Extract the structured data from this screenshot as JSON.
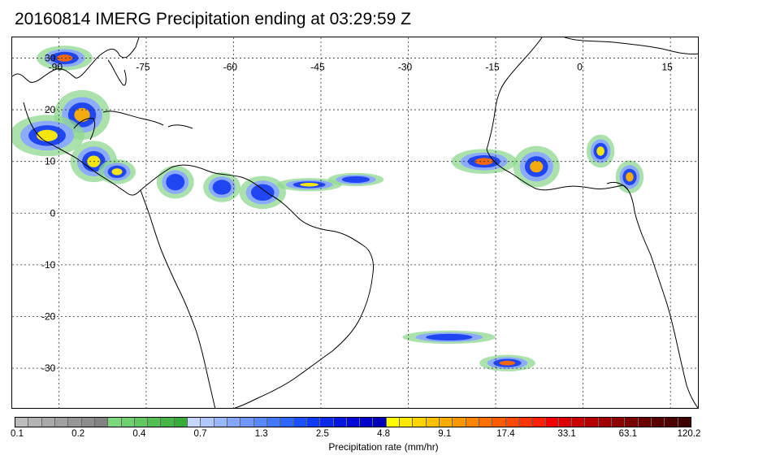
{
  "title": "20160814 IMERG Precipitation ending at 03:29:59 Z",
  "map": {
    "lon_range": [
      -98,
      20
    ],
    "lat_range": [
      -38,
      34
    ],
    "lon_ticks": [
      {
        "value": -90,
        "label": "-90"
      },
      {
        "value": -75,
        "label": "-75"
      },
      {
        "value": -60,
        "label": "-60"
      },
      {
        "value": -45,
        "label": "-45"
      },
      {
        "value": -30,
        "label": "-30"
      },
      {
        "value": -15,
        "label": "-15"
      },
      {
        "value": 0,
        "label": "0"
      },
      {
        "value": 15,
        "label": "15"
      }
    ],
    "lat_ticks": [
      {
        "value": 30,
        "label": "30"
      },
      {
        "value": 20,
        "label": "20"
      },
      {
        "value": 10,
        "label": "10"
      },
      {
        "value": 0,
        "label": "0"
      },
      {
        "value": -10,
        "label": "-10"
      },
      {
        "value": -20,
        "label": "-20"
      },
      {
        "value": -30,
        "label": "-30"
      }
    ],
    "gridlines": true,
    "precip_clusters": [
      {
        "lon": -89,
        "lat": 30,
        "rate": 30,
        "rx": 3.0,
        "ry": 1.5
      },
      {
        "lon": -86,
        "lat": 19,
        "rate": 10,
        "rx": 3.0,
        "ry": 3.0
      },
      {
        "lon": -92,
        "lat": 15,
        "rate": 6,
        "rx": 4.0,
        "ry": 2.5
      },
      {
        "lon": -84,
        "lat": 10,
        "rate": 8,
        "rx": 2.5,
        "ry": 2.5
      },
      {
        "lon": -80,
        "lat": 8,
        "rate": 5,
        "rx": 2.0,
        "ry": 1.5
      },
      {
        "lon": -70,
        "lat": 6,
        "rate": 3,
        "rx": 2.0,
        "ry": 2.0
      },
      {
        "lon": -62,
        "lat": 5,
        "rate": 4,
        "rx": 2.0,
        "ry": 1.8
      },
      {
        "lon": -55,
        "lat": 4,
        "rate": 3,
        "rx": 2.5,
        "ry": 2.0
      },
      {
        "lon": -47,
        "lat": 5.5,
        "rate": 6,
        "rx": 3.5,
        "ry": 0.8
      },
      {
        "lon": -39,
        "lat": 6.5,
        "rate": 4,
        "rx": 3.0,
        "ry": 0.8
      },
      {
        "lon": -17,
        "lat": 10,
        "rate": 25,
        "rx": 3.5,
        "ry": 1.5
      },
      {
        "lon": -8,
        "lat": 9,
        "rate": 10,
        "rx": 2.5,
        "ry": 2.5
      },
      {
        "lon": 3,
        "lat": 12,
        "rate": 8,
        "rx": 1.5,
        "ry": 2.0
      },
      {
        "lon": 8,
        "lat": 7,
        "rate": 12,
        "rx": 1.5,
        "ry": 2.0
      },
      {
        "lon": -13,
        "lat": -29,
        "rate": 20,
        "rx": 3.0,
        "ry": 1.0
      },
      {
        "lon": -23,
        "lat": -24,
        "rate": 3,
        "rx": 5.0,
        "ry": 0.8
      }
    ]
  },
  "colorbar": {
    "colors": [
      "#bdbdbd",
      "#b3b3b3",
      "#a9a9a9",
      "#a0a0a0",
      "#969696",
      "#8c8c8c",
      "#828282",
      "#7dd87d",
      "#6fd06f",
      "#61c861",
      "#53bf53",
      "#45b645",
      "#37ad37",
      "#c6d6ff",
      "#b0c8ff",
      "#9ab8ff",
      "#84a8ff",
      "#6e98ff",
      "#5888ff",
      "#4278ff",
      "#2c68ff",
      "#1a50ff",
      "#0e3cf5",
      "#0a2aeb",
      "#0618e0",
      "#0208d6",
      "#0000cc",
      "#0000b8",
      "#ffff00",
      "#ffe800",
      "#ffd400",
      "#ffc000",
      "#ffac00",
      "#ff9800",
      "#ff8400",
      "#ff7000",
      "#ff5c00",
      "#ff4800",
      "#ff3400",
      "#ff2000",
      "#f00000",
      "#dc0000",
      "#c80000",
      "#b40000",
      "#a00000",
      "#8c0000",
      "#7a0000",
      "#6a0000",
      "#5a0000",
      "#4c0000",
      "#400000"
    ],
    "tick_labels": [
      "0.1",
      "0.2",
      "0.4",
      "0.7",
      "1.3",
      "2.5",
      "4.8",
      "9.1",
      "17.4",
      "33.1",
      "63.1",
      "120.2"
    ],
    "title": "Precipitation rate (mm/hr)"
  }
}
